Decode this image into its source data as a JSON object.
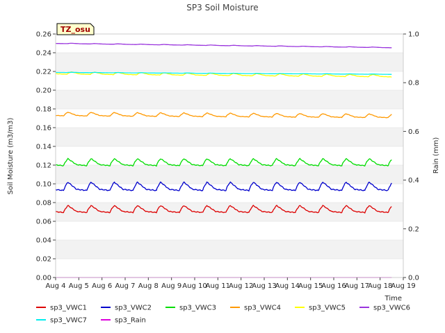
{
  "chart_data": {
    "type": "line",
    "title": "SP3 Soil Moisture",
    "xlabel": "Time",
    "ylabel": "Soil Moisture (m3/m3)",
    "y2label": "Rain (mm)",
    "tag": "TZ_osu",
    "ylim": [
      0,
      0.26
    ],
    "y2lim": [
      0,
      1.0
    ],
    "xlim": [
      0,
      15
    ],
    "x_tick_labels": [
      "Aug 4",
      "Aug 5",
      "Aug 6",
      "Aug 7",
      "Aug 8",
      "Aug 9",
      "Aug 10",
      "Aug 11",
      "Aug 12",
      "Aug 13",
      "Aug 14",
      "Aug 15",
      "Aug 16",
      "Aug 17",
      "Aug 18",
      "Aug 19"
    ],
    "y_ticks": [
      0.0,
      0.02,
      0.04,
      0.06,
      0.08,
      0.1,
      0.12,
      0.14,
      0.16,
      0.18,
      0.2,
      0.22,
      0.24,
      0.26
    ],
    "y2_ticks": [
      0.0,
      0.2,
      0.4,
      0.6,
      0.8,
      1.0
    ],
    "grid": "horizontal bands",
    "legend_position": "bottom",
    "x_start": 0,
    "x_end": 14.5,
    "series": [
      {
        "name": "sp3_VWC1",
        "color": "#dd0000",
        "axis": "left",
        "base": 0.072,
        "amp": 0.0075,
        "trend": 0.0,
        "phase": 0.35
      },
      {
        "name": "sp3_VWC2",
        "color": "#0000cc",
        "axis": "left",
        "base": 0.096,
        "amp": 0.009,
        "trend": 0.0,
        "phase": 0.35
      },
      {
        "name": "sp3_VWC3",
        "color": "#00dd00",
        "axis": "left",
        "base": 0.122,
        "amp": 0.0075,
        "trend": 0.0,
        "phase": 0.35
      },
      {
        "name": "sp3_VWC4",
        "color": "#ff9900",
        "axis": "left",
        "base": 0.174,
        "amp": 0.004,
        "trend": -0.002,
        "phase": 0.35
      },
      {
        "name": "sp3_VWC5",
        "color": "#ffff00",
        "axis": "left",
        "base": 0.218,
        "amp": 0.0025,
        "trend": -0.003,
        "phase": 0.5
      },
      {
        "name": "sp3_VWC6",
        "color": "#9933dd",
        "axis": "left",
        "base": 0.25,
        "amp": 0.0005,
        "trend": -0.0045,
        "phase": 0.5
      },
      {
        "name": "sp3_VWC7",
        "color": "#00eeee",
        "axis": "left",
        "base": 0.219,
        "amp": 0.0003,
        "trend": -0.002,
        "phase": 0.5
      },
      {
        "name": "sp3_Rain",
        "color": "#dd00dd",
        "axis": "right",
        "base": 0.0,
        "amp": 0.0,
        "trend": 0.0,
        "phase": 0.0
      }
    ]
  }
}
